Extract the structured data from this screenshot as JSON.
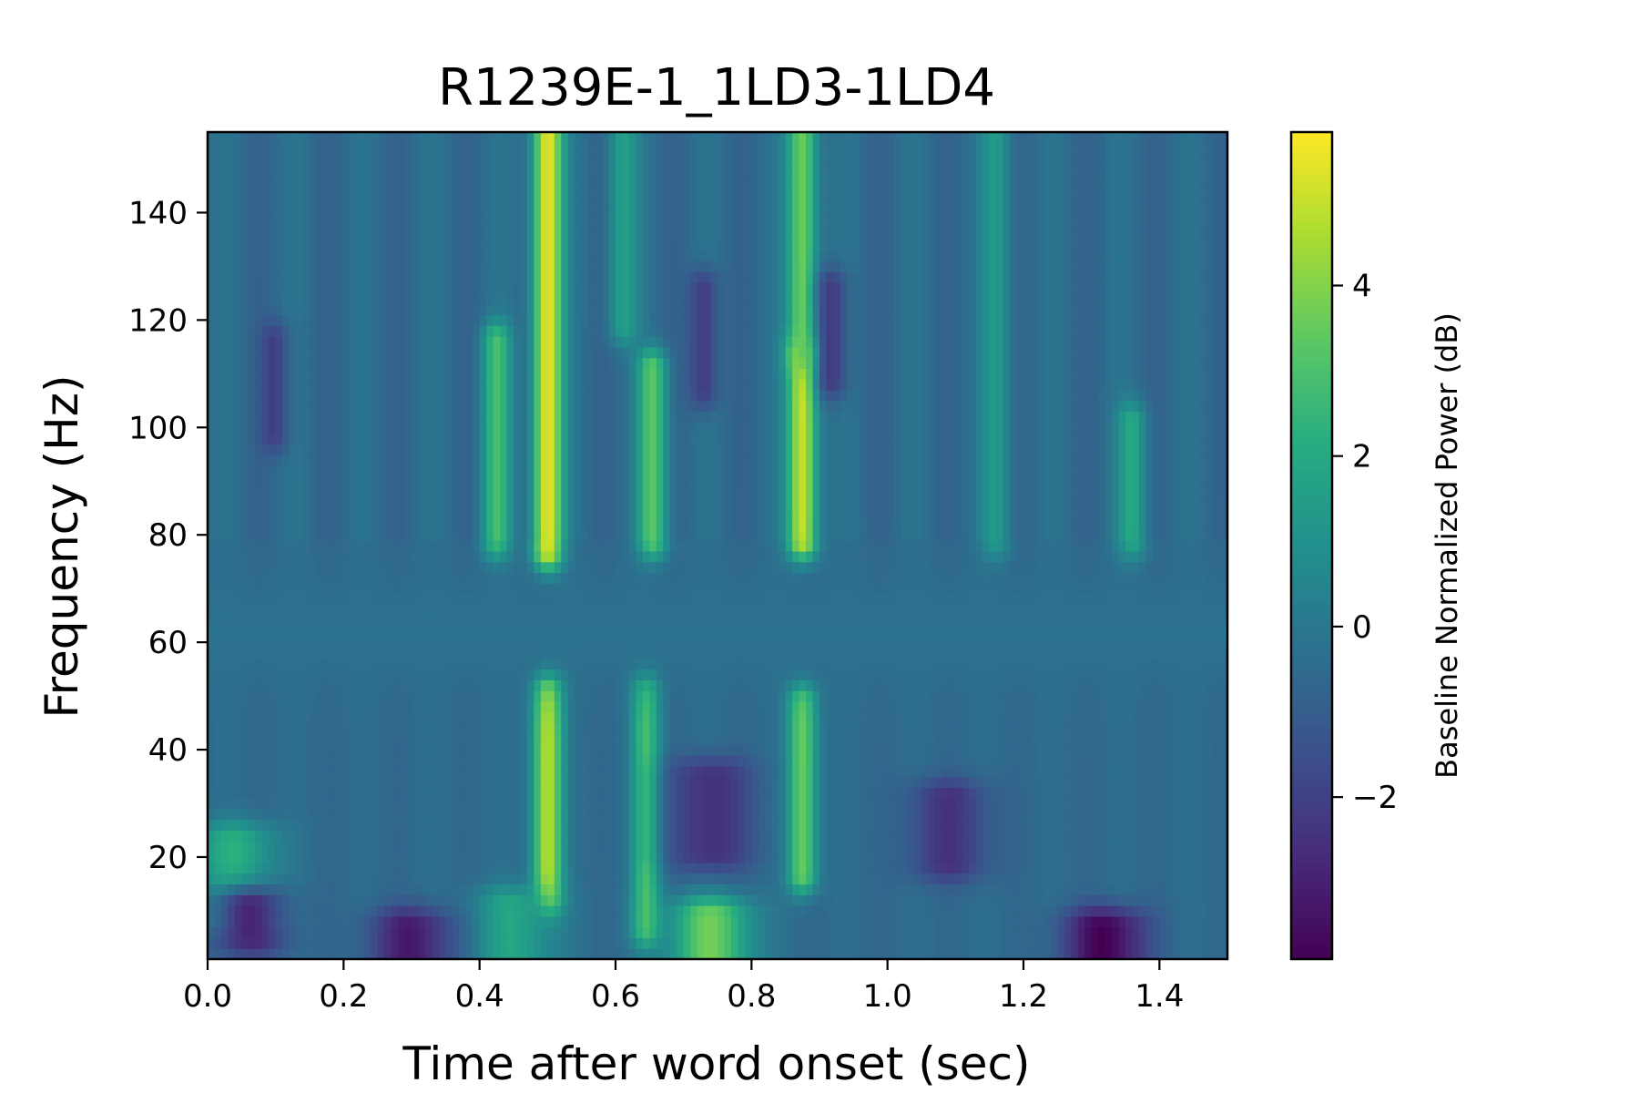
{
  "chart_data": {
    "type": "heatmap",
    "title": "R1239E-1_1LD3-1LD4",
    "xlabel": "Time after word onset (sec)",
    "ylabel": "Frequency (Hz)",
    "xlim": [
      0.0,
      1.5
    ],
    "ylim": [
      1,
      155
    ],
    "x_ticks": [
      "0.0",
      "0.2",
      "0.4",
      "0.6",
      "0.8",
      "1.0",
      "1.2",
      "1.4"
    ],
    "y_ticks": [
      "20",
      "40",
      "60",
      "80",
      "100",
      "120",
      "140"
    ],
    "colormap": "viridis",
    "colorbar": {
      "label": "Baseline Normalized Power (dB)",
      "range": [
        -3.9,
        5.8
      ],
      "ticks": [
        "−2",
        "0",
        "2",
        "4"
      ],
      "tick_values": [
        -2,
        0,
        2,
        4
      ]
    },
    "grid": false,
    "description_peaks_note": "",
    "background_db": -0.5,
    "hotspots": [
      {
        "t": 0.5,
        "f_from": 78,
        "f_to": 155,
        "db": 5.6
      },
      {
        "t": 0.5,
        "f_from": 14,
        "f_to": 50,
        "db": 4.8
      },
      {
        "t": 0.655,
        "f_from": 80,
        "f_to": 110,
        "db": 3.2
      },
      {
        "t": 0.645,
        "f_from": 8,
        "f_to": 50,
        "db": 2.8
      },
      {
        "t": 0.875,
        "f_from": 80,
        "f_to": 112,
        "db": 5.2
      },
      {
        "t": 0.875,
        "f_from": 115,
        "f_to": 155,
        "db": 3.8
      },
      {
        "t": 0.875,
        "f_from": 18,
        "f_to": 48,
        "db": 3.6
      },
      {
        "t": 0.425,
        "f_from": 80,
        "f_to": 115,
        "db": 2.6
      },
      {
        "t": 0.61,
        "f_from": 120,
        "f_to": 155,
        "db": 1.5
      },
      {
        "t": 1.16,
        "f_from": 80,
        "f_to": 155,
        "db": 1.3
      },
      {
        "t": 1.36,
        "f_from": 80,
        "f_to": 100,
        "db": 1.8
      },
      {
        "t": 0.74,
        "f_from": 2,
        "f_to": 8,
        "db": 3.6
      },
      {
        "t": 0.45,
        "f_from": 2,
        "f_to": 10,
        "db": 1.8
      },
      {
        "t": 0.04,
        "f_from": 10,
        "f_to": 22,
        "db": 2.2
      }
    ],
    "coldspots": [
      {
        "t": 0.3,
        "f_from": 1,
        "f_to": 6,
        "db": -3.2
      },
      {
        "t": 1.32,
        "f_from": 1,
        "f_to": 6,
        "db": -3.9
      },
      {
        "t": 0.74,
        "f_from": 22,
        "f_to": 34,
        "db": -2.6
      },
      {
        "t": 1.09,
        "f_from": 20,
        "f_to": 30,
        "db": -2.4
      },
      {
        "t": 0.73,
        "f_from": 108,
        "f_to": 125,
        "db": -2.4
      },
      {
        "t": 0.92,
        "f_from": 110,
        "f_to": 125,
        "db": -2.3
      },
      {
        "t": 0.1,
        "f_from": 100,
        "f_to": 115,
        "db": -2.0
      },
      {
        "t": 0.06,
        "f_from": 6,
        "f_to": 10,
        "db": -2.8
      }
    ]
  }
}
